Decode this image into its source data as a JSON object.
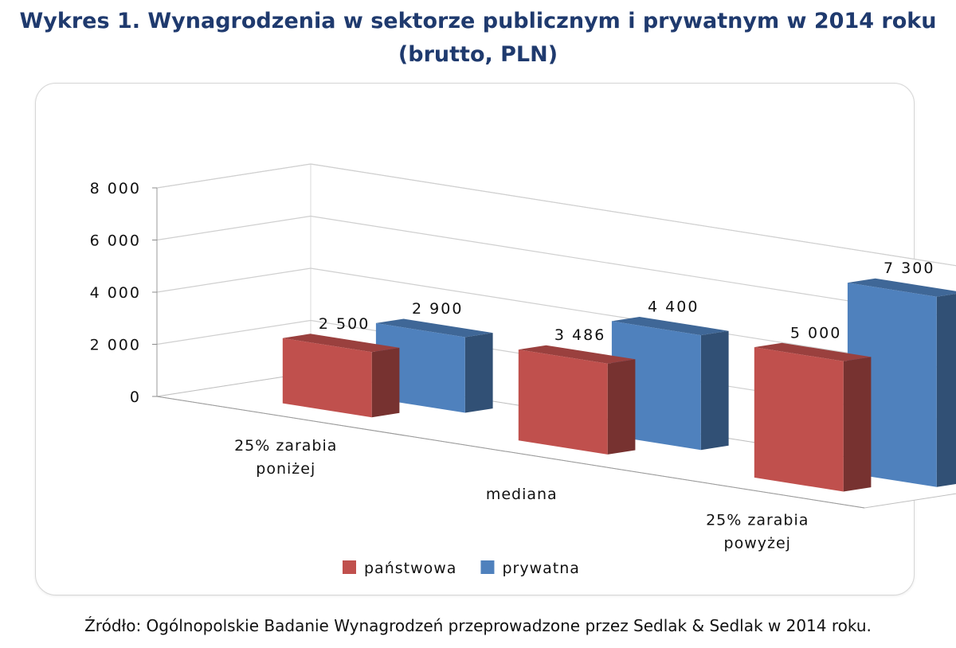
{
  "header": {
    "title_line1": "Wykres 1. Wynagrodzenia w sektorze publicznym i prywatnym w 2014 roku",
    "title_line2": "(brutto, PLN)"
  },
  "footer": {
    "source": "Źródło: Ogólnopolskie Badanie Wynagrodzeń przeprowadzone przez Sedlak & Sedlak w 2014 roku."
  },
  "colors": {
    "panstwowa": "#c0504d",
    "prywatna": "#4f81bd"
  },
  "chart_data": {
    "type": "bar",
    "style": "3d-clustered-column",
    "categories": [
      [
        "25% zarabia",
        "poniżej"
      ],
      [
        "mediana"
      ],
      [
        "25% zarabia",
        "powyżej"
      ]
    ],
    "series": [
      {
        "name": "państwowa",
        "values": [
          2500,
          3486,
          5000
        ],
        "labels": [
          "2 500",
          "3 486",
          "5 000"
        ]
      },
      {
        "name": "prywatna",
        "values": [
          2900,
          4400,
          7300
        ],
        "labels": [
          "2 900",
          "4 400",
          "7 300"
        ]
      }
    ],
    "yticks": [
      "0",
      "2 000",
      "4 000",
      "6 000",
      "8 000"
    ],
    "ylim": [
      0,
      8000
    ],
    "grid": true,
    "legend_position": "bottom"
  }
}
